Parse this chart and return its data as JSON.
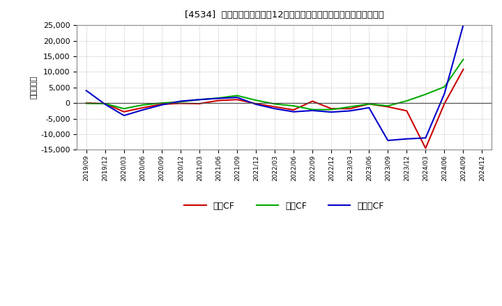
{
  "title": "[4534]  キャッシュフローの12か月移動合計の対前年同期増減額の推移",
  "ylabel": "（百万円）",
  "background_color": "#ffffff",
  "plot_background": "#ffffff",
  "grid_color": "#aaaaaa",
  "ylim": [
    -15000,
    25000
  ],
  "yticks": [
    -15000,
    -10000,
    -5000,
    0,
    5000,
    10000,
    15000,
    20000,
    25000
  ],
  "x_labels": [
    "2019/09",
    "2019/12",
    "2020/03",
    "2020/06",
    "2020/09",
    "2020/12",
    "2021/03",
    "2021/06",
    "2021/09",
    "2021/12",
    "2022/03",
    "2022/06",
    "2022/09",
    "2022/12",
    "2023/03",
    "2023/06",
    "2023/09",
    "2023/12",
    "2024/03",
    "2024/06",
    "2024/09",
    "2024/12"
  ],
  "series": {
    "営業CF": {
      "color": "#cc0000",
      "values": [
        0,
        -200,
        -2800,
        -1500,
        -400,
        -100,
        -200,
        800,
        1100,
        -200,
        -1200,
        -2200,
        600,
        -1800,
        -1800,
        -300,
        -1200,
        -2500,
        -14500,
        -200,
        10800,
        null
      ]
    },
    "投賃CF": {
      "color": "#00aa00",
      "values": [
        -100,
        -200,
        -1800,
        -600,
        0,
        400,
        1100,
        1600,
        2400,
        900,
        -300,
        -900,
        -2100,
        -2100,
        -1200,
        -300,
        -900,
        700,
        2800,
        5200,
        14000,
        null
      ]
    },
    "フリーCF": {
      "color": "#0000cc",
      "values": [
        4000,
        -400,
        -4000,
        -2200,
        -600,
        600,
        1100,
        1500,
        1800,
        -400,
        -1800,
        -2800,
        -2400,
        -2900,
        -2500,
        -1500,
        -12000,
        -11500,
        -11200,
        3000,
        25000,
        null
      ]
    }
  },
  "legend_entries": [
    "営業CF",
    "投賃CF",
    "フリーCF"
  ],
  "line_width": 1.5
}
